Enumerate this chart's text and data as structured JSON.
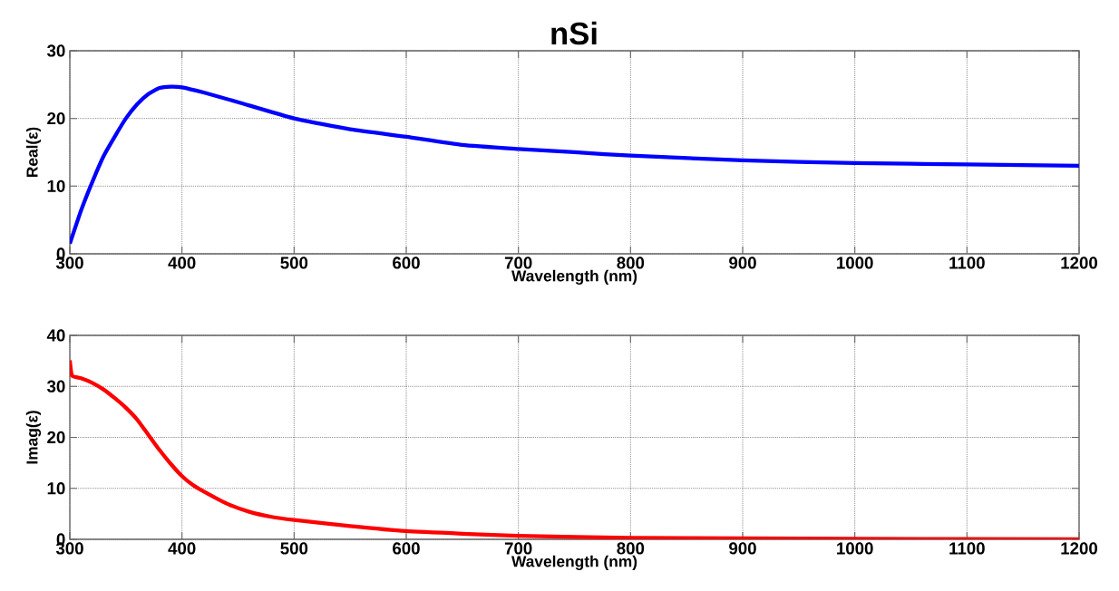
{
  "chart_data": [
    {
      "type": "line",
      "title": "nSi",
      "xlabel": "Wavelength (nm)",
      "ylabel": "Real(ε)",
      "xlim": [
        300,
        1200
      ],
      "ylim": [
        0,
        30
      ],
      "xticks": [
        300,
        400,
        500,
        600,
        700,
        800,
        900,
        1000,
        1100,
        1200
      ],
      "yticks": [
        0,
        10,
        20,
        30
      ],
      "grid": true,
      "x": [
        300,
        310,
        320,
        330,
        340,
        350,
        360,
        370,
        380,
        390,
        400,
        420,
        450,
        500,
        550,
        600,
        650,
        700,
        750,
        800,
        900,
        1000,
        1100,
        1200
      ],
      "series": [
        {
          "color": "#0000ff",
          "values": [
            1.5,
            6.4,
            10.6,
            14.4,
            17.3,
            20,
            22.1,
            23.6,
            24.5,
            24.7,
            24.6,
            23.8,
            22.4,
            20,
            18.4,
            17.3,
            16.1,
            15.5,
            15.0,
            14.5,
            13.8,
            13.4,
            13.2,
            13.0
          ]
        }
      ]
    },
    {
      "type": "line",
      "xlabel": "Wavelength (nm)",
      "ylabel": "Imag(ε)",
      "xlim": [
        300,
        1200
      ],
      "ylim": [
        0,
        40
      ],
      "xticks": [
        300,
        400,
        500,
        600,
        700,
        800,
        900,
        1000,
        1100,
        1200
      ],
      "yticks": [
        0,
        10,
        20,
        30,
        40
      ],
      "grid": true,
      "x": [
        300,
        302,
        310,
        320,
        330,
        340,
        350,
        360,
        370,
        380,
        390,
        400,
        410,
        420,
        440,
        460,
        480,
        500,
        550,
        600,
        650,
        700,
        800,
        900,
        1000,
        1200
      ],
      "series": [
        {
          "color": "#ff0000",
          "values": [
            35.1,
            32.1,
            31.6,
            30.7,
            29.4,
            27.7,
            25.8,
            23.5,
            20.5,
            17.5,
            14.8,
            12.4,
            10.6,
            9.3,
            7.0,
            5.4,
            4.4,
            3.8,
            2.6,
            1.6,
            1.1,
            0.7,
            0.3,
            0.2,
            0.1,
            0.0
          ]
        }
      ]
    }
  ]
}
